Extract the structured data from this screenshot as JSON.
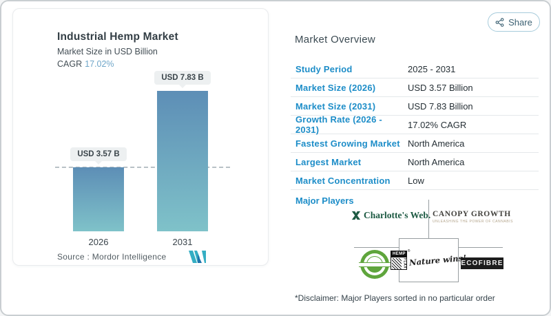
{
  "chart": {
    "title": "Industrial Hemp Market",
    "subtitle": "Market Size in USD Billion",
    "cagr_label": "CAGR",
    "cagr_value": "17.02%",
    "source_label": "Source :  Mordor Intelligence",
    "logo_name": "mordor-intelligence-logo"
  },
  "chart_data": {
    "type": "bar",
    "categories": [
      "2026",
      "2031"
    ],
    "values": [
      3.57,
      7.83
    ],
    "value_labels": [
      "USD 3.57 B",
      "USD 7.83 B"
    ],
    "title": "Industrial Hemp Market",
    "ylabel": "Market Size in USD Billion",
    "ylim": [
      0,
      7.83
    ],
    "grid": false,
    "legend": false,
    "annotations": {
      "dashed_reference_line_at": 3.57
    },
    "bar_gradient": [
      "#5d8eb6",
      "#7fc2c9"
    ]
  },
  "share": {
    "label": "Share"
  },
  "overview": {
    "heading": "Market Overview",
    "rows": [
      {
        "label": "Study Period",
        "value": "2025 - 2031"
      },
      {
        "label": "Market Size (2026)",
        "value": "USD 3.57 Billion"
      },
      {
        "label": "Market Size (2031)",
        "value": "USD 7.83 Billion"
      },
      {
        "label": "Growth Rate (2026 - 2031)",
        "value": "17.02% CAGR"
      },
      {
        "label": "Fastest Growing Market",
        "value": "North America"
      },
      {
        "label": "Largest Market",
        "value": "North America"
      },
      {
        "label": "Market Concentration",
        "value": "Low"
      }
    ],
    "major_players_label": "Major Players",
    "players": {
      "charlottes_web": {
        "name": "Charlotte's Web",
        "text": "Charlotte's Web."
      },
      "canopy_growth": {
        "name": "Canopy Growth",
        "text": "CANOPY GROWTH",
        "tagline": "UNLEASHING THE POWER OF CANNABIS"
      },
      "manitoba_harvest": {
        "name": "Manitoba Harvest"
      },
      "hempflax": {
        "name": "HempFlax",
        "text_top": "HEMP",
        "text_side": "FLAX",
        "script": "Nature wins!"
      },
      "ecofibre": {
        "name": "Ecofibre",
        "text": "ECOFIBRE"
      }
    },
    "disclaimer": "*Disclaimer: Major Players sorted in no particular order"
  },
  "colors": {
    "label_blue": "#1d8dc8",
    "cagr_blue": "#6fa6c9",
    "share_blue": "#3c6173",
    "bar_top": "#5d8eb6",
    "bar_bottom": "#7fc2c9"
  }
}
